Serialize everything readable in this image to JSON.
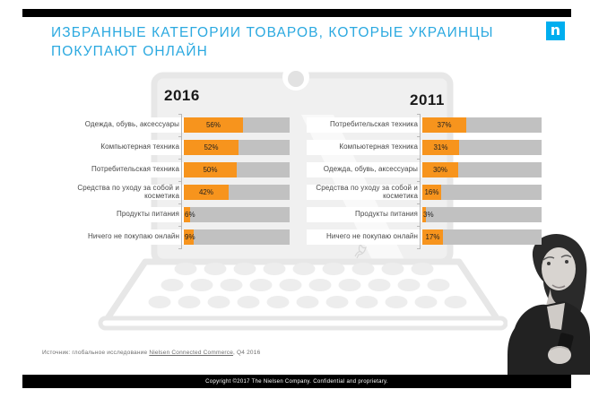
{
  "slide": {
    "title_lines": [
      "ИЗБРАННЫЕ КАТЕГОРИИ ТОВАРОВ, КОТОРЫЕ УКРАИНЦЫ",
      "ПОКУПАЮТ ОНЛАЙН"
    ],
    "logo_letter": "n",
    "source_prefix": "Источник: глобальное исследование ",
    "source_link": "Nielsen Connected Commerce",
    "source_suffix": ", Q4 2016",
    "footer": "Copyright ©2017  The Nielsen Company. Confidential and proprietary."
  },
  "colors": {
    "accent_orange": "#F7941D",
    "track_gray": "#C1C1C1",
    "title_blue": "#2BA9E0",
    "logo_blue": "#00AEEF",
    "footer_black": "#000000"
  },
  "chart_data": [
    {
      "type": "bar",
      "orientation": "horizontal",
      "title": "2016",
      "categories": [
        "Одежда, обувь, аксессуары",
        "Компьютерная техника",
        "Потребительская техника",
        "Средства по уходу за собой и косметика",
        "Продукты питания",
        "Ничего не покупаю онлайн"
      ],
      "values": [
        56,
        52,
        50,
        42,
        6,
        9
      ],
      "unit": "%",
      "xlim": [
        0,
        100
      ],
      "legend": "none",
      "grid": false
    },
    {
      "type": "bar",
      "orientation": "horizontal",
      "title": "2011",
      "categories": [
        "Потребительская техника",
        "Компьютерная техника",
        "Одежда, обувь, аксессуары",
        "Средства по уходу за собой и косметика",
        "Продукты питания",
        "Ничего не покупаю онлайн"
      ],
      "values": [
        37,
        31,
        30,
        16,
        3,
        17
      ],
      "unit": "%",
      "xlim": [
        0,
        100
      ],
      "legend": "none",
      "grid": false
    }
  ]
}
